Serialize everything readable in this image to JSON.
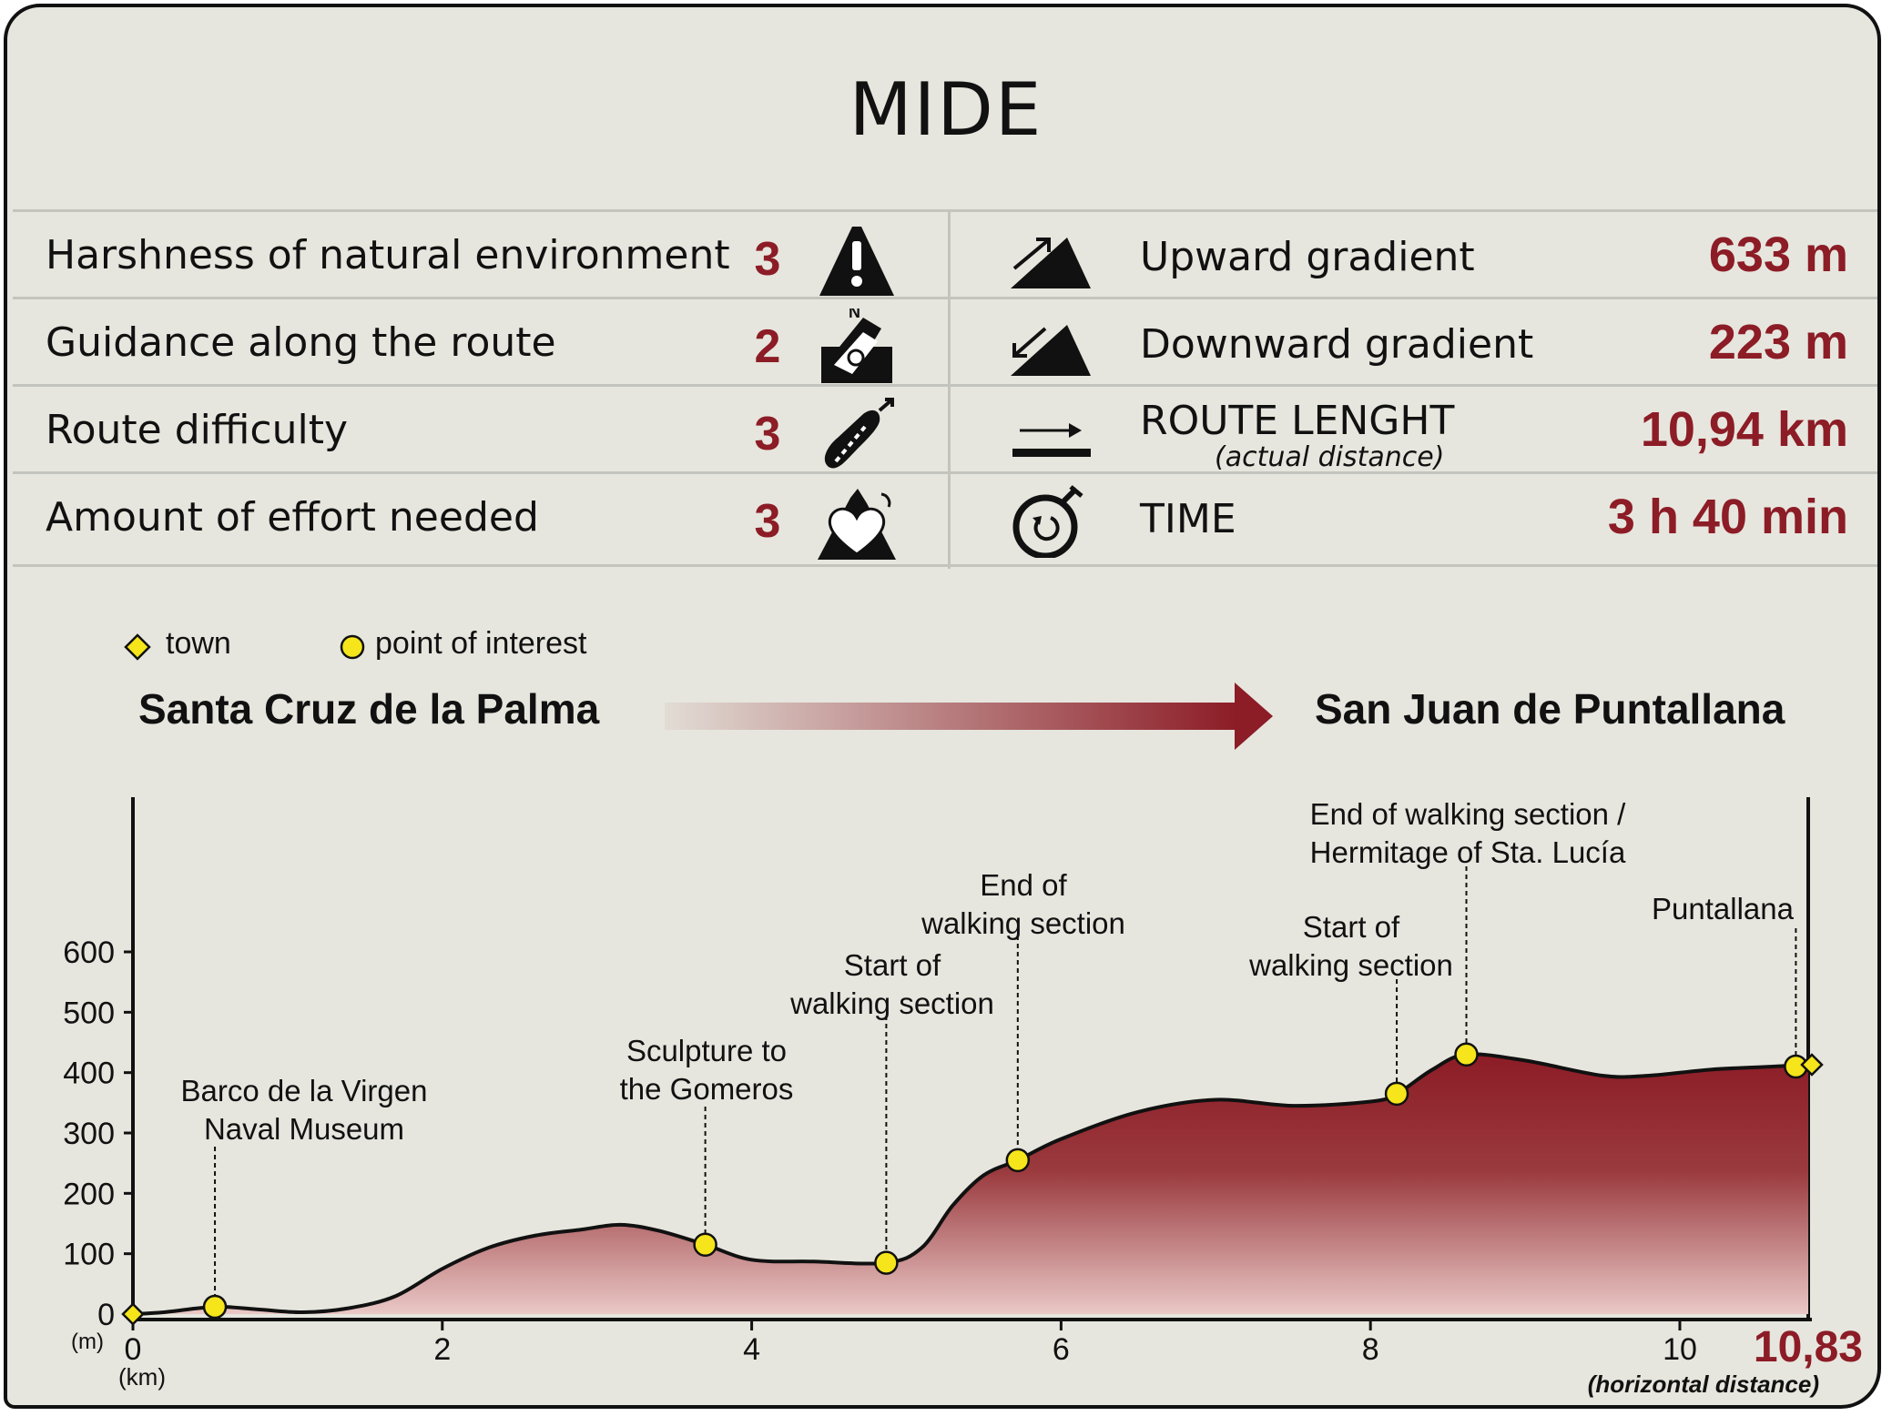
{
  "title": "MIDE",
  "mide_rows": [
    {
      "label": "Harshness of natural environment",
      "value": "3",
      "icon": "warning-mountain-icon"
    },
    {
      "label": "Guidance along the route",
      "value": "2",
      "icon": "map-compass-icon"
    },
    {
      "label": "Route difficulty",
      "value": "3",
      "icon": "footprint-icon"
    },
    {
      "label": "Amount of effort needed",
      "value": "3",
      "icon": "heart-mountain-icon"
    }
  ],
  "route_rows": [
    {
      "label": "Upward gradient",
      "sublabel": "",
      "value": "633 m",
      "icon": "upward-slope-icon"
    },
    {
      "label": "Downward gradient",
      "sublabel": "",
      "value": "223 m",
      "icon": "downward-slope-icon"
    },
    {
      "label": "ROUTE LENGHT",
      "sublabel": "(actual distance)",
      "value": "10,94 km",
      "icon": "distance-arrow-icon"
    },
    {
      "label": "TIME",
      "sublabel": "",
      "value": "3 h 40 min",
      "icon": "stopwatch-icon"
    }
  ],
  "legend": {
    "town": "town",
    "poi": "point of interest"
  },
  "route": {
    "start": "Santa Cruz de la Palma",
    "end": "San Juan de Puntallana"
  },
  "colors": {
    "accent": "#8c1c26",
    "marker": "#f5e51a",
    "background": "#e6e6de"
  },
  "chart_data": {
    "type": "area",
    "x_unit_label": "(km)",
    "y_unit_label": "(m)",
    "xlim": [
      0,
      10.83
    ],
    "ylim": [
      0,
      600
    ],
    "x_ticks": [
      "0",
      "2",
      "4",
      "6",
      "8",
      "10"
    ],
    "y_ticks": [
      "0",
      "100",
      "200",
      "300",
      "400",
      "500",
      "600"
    ],
    "end_distance": "10,83",
    "end_distance_note": "(horizontal distance)",
    "series": [
      {
        "x": [
          0,
          0.2,
          0.53,
          0.8,
          1.1,
          1.4,
          1.7,
          2.0,
          2.3,
          2.6,
          2.9,
          3.15,
          3.4,
          3.7,
          4.0,
          4.4,
          4.87,
          5.1,
          5.3,
          5.5,
          5.72,
          6.0,
          6.5,
          7.0,
          7.5,
          8.0,
          8.17,
          8.4,
          8.62,
          9.0,
          9.5,
          9.8,
          10.2,
          10.6,
          10.83
        ],
        "y": [
          0,
          3,
          12,
          8,
          3,
          10,
          30,
          75,
          110,
          130,
          140,
          148,
          138,
          115,
          90,
          87,
          85,
          110,
          180,
          230,
          255,
          290,
          335,
          355,
          345,
          352,
          365,
          405,
          430,
          420,
          395,
          395,
          405,
          410,
          413
        ]
      }
    ],
    "towns": [
      {
        "x": 0,
        "y": 0
      },
      {
        "x": 10.83,
        "y": 413
      }
    ],
    "points": [
      {
        "x": 0.53,
        "y": 12,
        "label": [
          "Barco de la Virgen",
          "Naval Museum"
        ]
      },
      {
        "x": 3.7,
        "y": 115,
        "label": [
          "Sculpture to",
          "the Gomeros"
        ]
      },
      {
        "x": 4.87,
        "y": 85,
        "label": [
          "Start of",
          "walking section"
        ]
      },
      {
        "x": 5.72,
        "y": 255,
        "label": [
          "End of",
          "walking section"
        ]
      },
      {
        "x": 8.17,
        "y": 365,
        "label": [
          "Start of",
          "walking section"
        ]
      },
      {
        "x": 8.62,
        "y": 430,
        "label": [
          "End of walking section /",
          "Hermitage of Sta. Lucía"
        ]
      },
      {
        "x": 10.75,
        "y": 410,
        "label": [
          "Puntallana"
        ]
      }
    ]
  }
}
